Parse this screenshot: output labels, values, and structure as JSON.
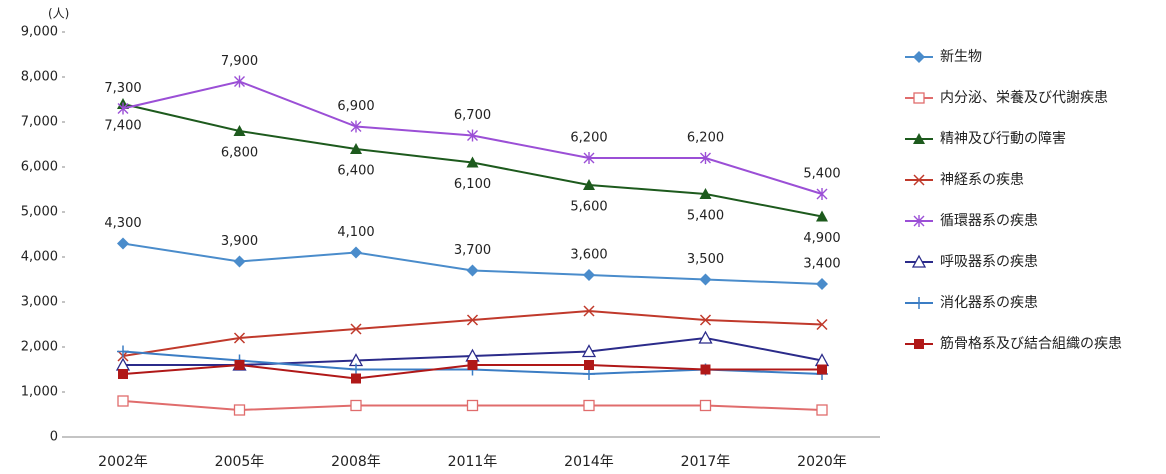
{
  "chart_data": {
    "type": "line",
    "y_unit": "(人)",
    "categories": [
      "2002年",
      "2005年",
      "2008年",
      "2011年",
      "2014年",
      "2017年",
      "2020年"
    ],
    "ylim": [
      0,
      9000
    ],
    "yticks": [
      0,
      {
        "value": 1000,
        "label": "1,000"
      },
      {
        "value": 2000,
        "label": "2,000"
      },
      {
        "value": 3000,
        "label": "3,000"
      },
      {
        "value": 4000,
        "label": "4,000"
      },
      {
        "value": 5000,
        "label": "5,000"
      },
      {
        "value": 6000,
        "label": "6,000"
      },
      {
        "value": 7000,
        "label": "7,000"
      },
      {
        "value": 8000,
        "label": "8,000"
      },
      {
        "value": 9000,
        "label": "9,000"
      }
    ],
    "legend": "right",
    "series": [
      {
        "name": "新生物",
        "color": "#4a8ccb",
        "marker": "diamond",
        "label_side": "above",
        "values": [
          4300,
          3900,
          4100,
          3700,
          3600,
          3500,
          3400
        ],
        "value_labels": [
          "4,300",
          "3,900",
          "4,100",
          "3,700",
          "3,600",
          "3,500",
          "3,400"
        ]
      },
      {
        "name": "内分泌、栄養及び代謝疾患",
        "color": "#e06c6c",
        "marker": "square-open",
        "values": [
          800,
          600,
          700,
          700,
          700,
          700,
          600
        ]
      },
      {
        "name": "精神及び行動の障害",
        "color": "#1d5a1d",
        "marker": "triangle",
        "label_side": "below",
        "values": [
          7400,
          6800,
          6400,
          6100,
          5600,
          5400,
          4900
        ],
        "value_labels": [
          "7,400",
          "6,800",
          "6,400",
          "6,100",
          "5,600",
          "5,400",
          "4,900"
        ]
      },
      {
        "name": "神経系の疾患",
        "color": "#c0392b",
        "marker": "x",
        "values": [
          1800,
          2200,
          2400,
          2600,
          2800,
          2600,
          2500
        ]
      },
      {
        "name": "循環器系の疾患",
        "color": "#9b4fd6",
        "marker": "star",
        "label_side": "above",
        "values": [
          7300,
          7900,
          6900,
          6700,
          6200,
          6200,
          5400
        ],
        "value_labels": [
          "7,300",
          "7,900",
          "6,900",
          "6,700",
          "6,200",
          "6,200",
          "5,400"
        ]
      },
      {
        "name": "呼吸器系の疾患",
        "color": "#2b2b8a",
        "marker": "triangle-open",
        "values": [
          1600,
          1600,
          1700,
          1800,
          1900,
          2200,
          1700
        ]
      },
      {
        "name": "消化器系の疾患",
        "color": "#3b7dc4",
        "marker": "plus",
        "values": [
          1900,
          1700,
          1500,
          1500,
          1400,
          1500,
          1400
        ]
      },
      {
        "name": "筋骨格系及び結合組織の疾患",
        "color": "#b01818",
        "marker": "square",
        "values": [
          1400,
          1600,
          1300,
          1600,
          1600,
          1500,
          1500
        ]
      }
    ]
  }
}
